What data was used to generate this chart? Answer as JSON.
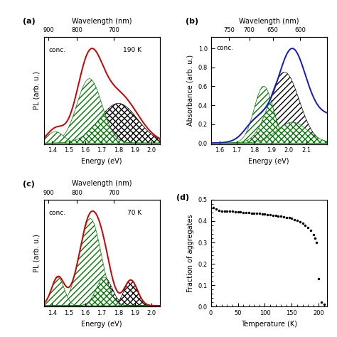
{
  "panel_a": {
    "label": "(a)",
    "temp": "190 K",
    "energy_range": [
      1.35,
      2.05
    ],
    "wavelength_ticks": [
      900,
      800,
      700
    ],
    "energy_ticks": [
      1.4,
      1.5,
      1.6,
      1.7,
      1.8,
      1.9,
      2.0
    ],
    "ylabel": "PL (arb. u.)",
    "xlabel": "Energy (eV)",
    "top_xlabel": "Wavelength (nm)"
  },
  "panel_b": {
    "label": "(b)",
    "energy_range": [
      1.55,
      2.22
    ],
    "wavelength_ticks": [
      750,
      700,
      650,
      600
    ],
    "energy_ticks": [
      1.6,
      1.7,
      1.8,
      1.9,
      2.0,
      2.1
    ],
    "ylabel": "Absorbance (arb. u.)",
    "xlabel": "Energy (eV)",
    "top_xlabel": "Wavelength (nm)",
    "yticks": [
      0.0,
      0.2,
      0.4,
      0.6,
      0.8,
      1.0
    ]
  },
  "panel_c": {
    "label": "(c)",
    "temp": "70 K",
    "energy_range": [
      1.35,
      2.05
    ],
    "wavelength_ticks": [
      900,
      800,
      700
    ],
    "energy_ticks": [
      1.4,
      1.5,
      1.6,
      1.7,
      1.8,
      1.9,
      2.0
    ],
    "ylabel": "PL (arb. u.)",
    "xlabel": "Energy (eV)",
    "top_xlabel": "Wavelength (nm)"
  },
  "panel_d": {
    "label": "(d)",
    "xlabel": "Temperature (K)",
    "ylabel": "Fraction of aggregates",
    "xlim": [
      0,
      215
    ],
    "ylim": [
      0,
      0.5
    ],
    "yticks": [
      0.0,
      0.1,
      0.2,
      0.3,
      0.4,
      0.5
    ],
    "xticks": [
      0,
      50,
      100,
      150,
      200
    ]
  },
  "colors": {
    "red": "#cc0000",
    "green": "#007700",
    "blue": "#1515cc",
    "black": "#000000"
  },
  "T_vals": [
    5,
    10,
    15,
    20,
    25,
    30,
    35,
    40,
    45,
    50,
    55,
    60,
    65,
    70,
    75,
    80,
    85,
    90,
    95,
    100,
    105,
    110,
    115,
    120,
    125,
    130,
    135,
    140,
    145,
    150,
    155,
    160,
    165,
    170,
    175,
    180,
    185,
    190,
    193,
    196,
    200,
    205,
    210
  ],
  "frac_vals": [
    0.462,
    0.455,
    0.45,
    0.448,
    0.447,
    0.446,
    0.445,
    0.445,
    0.444,
    0.443,
    0.442,
    0.441,
    0.44,
    0.439,
    0.438,
    0.437,
    0.436,
    0.435,
    0.434,
    0.433,
    0.431,
    0.43,
    0.428,
    0.426,
    0.424,
    0.422,
    0.42,
    0.418,
    0.415,
    0.412,
    0.408,
    0.403,
    0.397,
    0.39,
    0.381,
    0.37,
    0.356,
    0.338,
    0.32,
    0.3,
    0.13,
    0.02,
    0.01
  ]
}
